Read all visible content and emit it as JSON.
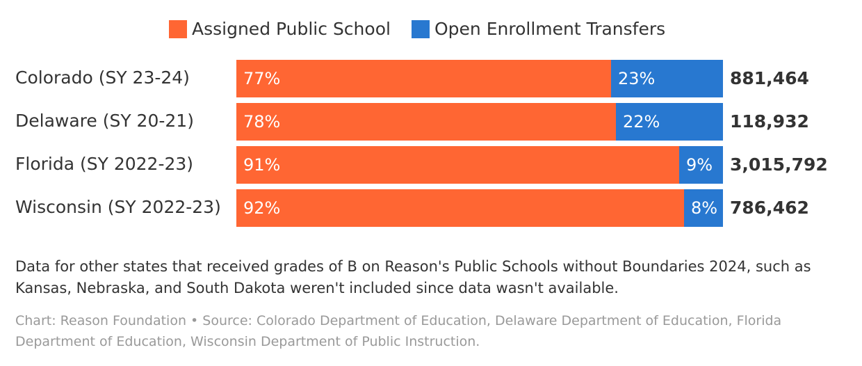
{
  "chart_data": {
    "type": "stacked_bar_horizontal",
    "categories": [
      "Colorado (SY 23-24)",
      "Delaware (SY 20-21)",
      "Florida (SY 2022-23)",
      "Wisconsin (SY 2022-23)"
    ],
    "series": [
      {
        "name": "Assigned Public School",
        "color": "#ff6633",
        "values": [
          77,
          78,
          91,
          92
        ],
        "value_labels": [
          "77%",
          "78%",
          "91%",
          "92%"
        ]
      },
      {
        "name": "Open Enrollment Transfers",
        "color": "#2878d0",
        "values": [
          23,
          22,
          9,
          8
        ],
        "value_labels": [
          "23%",
          "22%",
          "9%",
          "8%"
        ]
      }
    ],
    "totals": [
      {
        "value": 881464,
        "label": "881,464"
      },
      {
        "value": 118932,
        "label": "118,932"
      },
      {
        "value": 3015792,
        "label": "3,015,792"
      },
      {
        "value": 786462,
        "label": "786,462"
      }
    ],
    "xlim": [
      0,
      100
    ],
    "legend": "top",
    "note": "Data for other states that received grades of B on Reason's Public Schools without Boundaries 2024, such as Kansas, Nebraska, and South Dakota weren't included since data wasn't available.",
    "source": "Chart: Reason Foundation • Source: Colorado Department of Education, Delaware Department of Education, Florida Department of Education, Wisconsin Department of Public Instruction."
  }
}
